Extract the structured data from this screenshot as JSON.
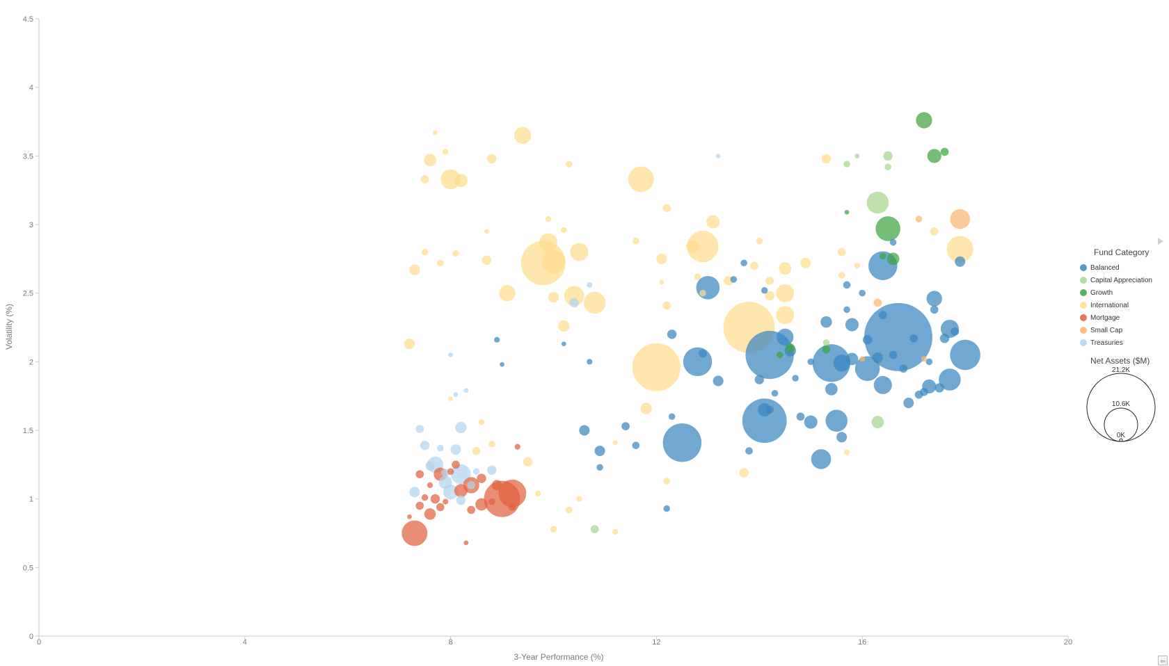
{
  "chart_data": {
    "type": "scatter",
    "xlabel": "3-Year Performance (%)",
    "ylabel": "Volatility (%)",
    "xlim": [
      0,
      20
    ],
    "ylim": [
      0,
      4.5
    ],
    "x_ticks": [
      "0",
      "4",
      "8",
      "12",
      "16",
      "20"
    ],
    "y_ticks": [
      "0",
      "0.5",
      "1",
      "1.5",
      "2",
      "2.5",
      "3",
      "3.5",
      "4",
      "4.5"
    ],
    "grid": false,
    "legend_position": "right",
    "size_variable": "Net Assets ($M)",
    "size_max": 21200,
    "series": [
      {
        "name": "Balanced",
        "color": "#3a87c0",
        "points": [
          [
            16.7,
            2.18,
            21200
          ],
          [
            14.2,
            2.05,
            10600
          ],
          [
            14.1,
            1.57,
            9000
          ],
          [
            15.4,
            1.99,
            6500
          ],
          [
            12.5,
            1.41,
            6800
          ],
          [
            13.0,
            2.54,
            2500
          ],
          [
            12.8,
            2.0,
            3800
          ],
          [
            18.0,
            2.05,
            4200
          ],
          [
            17.7,
            1.87,
            2200
          ],
          [
            16.4,
            2.7,
            3800
          ],
          [
            15.5,
            1.57,
            2200
          ],
          [
            15.2,
            1.29,
            1800
          ],
          [
            15.0,
            1.56,
            800
          ],
          [
            16.1,
            1.95,
            2800
          ],
          [
            16.4,
            1.83,
            1500
          ],
          [
            17.4,
            2.46,
            1100
          ],
          [
            14.5,
            2.18,
            1300
          ],
          [
            15.8,
            2.27,
            800
          ],
          [
            17.7,
            2.24,
            1500
          ],
          [
            17.3,
            1.82,
            900
          ],
          [
            10.6,
            1.5,
            500
          ],
          [
            10.9,
            1.35,
            500
          ],
          [
            13.2,
            1.86,
            500
          ],
          [
            15.6,
            1.45,
            500
          ],
          [
            12.3,
            2.2,
            400
          ],
          [
            14.1,
            1.65,
            800
          ],
          [
            15.6,
            1.99,
            1300
          ],
          [
            14.8,
            1.6,
            300
          ],
          [
            17.9,
            2.73,
            500
          ],
          [
            16.6,
            2.87,
            200
          ],
          [
            14.0,
            1.87,
            400
          ],
          [
            12.2,
            0.93,
            200
          ],
          [
            11.4,
            1.53,
            300
          ],
          [
            11.6,
            1.39,
            250
          ],
          [
            13.8,
            1.35,
            250
          ],
          [
            17.4,
            2.38,
            300
          ],
          [
            16.1,
            2.16,
            400
          ],
          [
            16.9,
            1.7,
            500
          ],
          [
            15.4,
            1.8,
            700
          ],
          [
            15.8,
            2.02,
            700
          ],
          [
            17.5,
            1.81,
            400
          ],
          [
            17.1,
            1.76,
            300
          ],
          [
            16.0,
            2.5,
            200
          ],
          [
            15.7,
            2.56,
            250
          ],
          [
            17.2,
            1.78,
            300
          ],
          [
            12.9,
            2.06,
            300
          ],
          [
            14.2,
            1.65,
            300
          ],
          [
            8.9,
            2.16,
            150
          ],
          [
            9.0,
            1.98,
            100
          ],
          [
            10.7,
            2.0,
            150
          ],
          [
            10.2,
            2.13,
            100
          ],
          [
            13.7,
            2.72,
            200
          ],
          [
            14.6,
            2.08,
            600
          ],
          [
            15.3,
            2.29,
            600
          ],
          [
            16.8,
            1.95,
            300
          ],
          [
            17.8,
            2.22,
            300
          ],
          [
            16.4,
            2.34,
            300
          ],
          [
            14.3,
            1.77,
            200
          ],
          [
            10.9,
            1.23,
            200
          ],
          [
            17.3,
            2.0,
            200
          ],
          [
            16.6,
            2.05,
            300
          ],
          [
            16.3,
            2.03,
            500
          ],
          [
            17.6,
            2.17,
            400
          ],
          [
            17.0,
            2.17,
            300
          ],
          [
            12.3,
            1.6,
            200
          ],
          [
            13.5,
            2.6,
            200
          ],
          [
            15.0,
            2.0,
            200
          ],
          [
            14.7,
            1.88,
            200
          ],
          [
            15.7,
            2.38,
            200
          ],
          [
            14.1,
            2.52,
            200
          ]
        ]
      },
      {
        "name": "Capital Appreciation",
        "color": "#a6d78e",
        "points": [
          [
            16.3,
            3.16,
            2200
          ],
          [
            16.3,
            1.56,
            700
          ],
          [
            16.5,
            3.5,
            400
          ],
          [
            15.7,
            3.44,
            200
          ],
          [
            16.5,
            3.42,
            200
          ],
          [
            10.8,
            0.78,
            300
          ],
          [
            15.9,
            3.5,
            100
          ],
          [
            15.3,
            2.14,
            200
          ]
        ]
      },
      {
        "name": "Growth",
        "color": "#3ea33e",
        "points": [
          [
            17.2,
            3.76,
            1200
          ],
          [
            16.5,
            2.97,
            2800
          ],
          [
            17.4,
            3.5,
            900
          ],
          [
            16.6,
            2.75,
            700
          ],
          [
            17.6,
            3.53,
            300
          ],
          [
            14.6,
            2.1,
            400
          ],
          [
            15.3,
            2.09,
            300
          ],
          [
            16.4,
            2.77,
            200
          ],
          [
            15.7,
            3.09,
            100
          ],
          [
            14.4,
            2.05,
            200
          ]
        ]
      },
      {
        "name": "International",
        "color": "#fddc8c",
        "points": [
          [
            13.8,
            2.25,
            12000
          ],
          [
            12.0,
            1.96,
            10500
          ],
          [
            9.8,
            2.72,
            9000
          ],
          [
            12.9,
            2.84,
            4500
          ],
          [
            10.0,
            2.73,
            2500
          ],
          [
            8.0,
            3.33,
            1800
          ],
          [
            11.7,
            3.33,
            3000
          ],
          [
            9.9,
            2.87,
            1500
          ],
          [
            10.4,
            2.48,
            1800
          ],
          [
            10.8,
            2.43,
            2200
          ],
          [
            14.5,
            2.5,
            1500
          ],
          [
            17.9,
            2.82,
            3200
          ],
          [
            8.2,
            3.32,
            800
          ],
          [
            9.4,
            3.65,
            1300
          ],
          [
            13.1,
            3.02,
            800
          ],
          [
            14.5,
            2.34,
            1500
          ],
          [
            12.7,
            2.84,
            700
          ],
          [
            14.5,
            2.68,
            700
          ],
          [
            10.5,
            2.8,
            1500
          ],
          [
            7.2,
            2.13,
            500
          ],
          [
            7.3,
            2.67,
            500
          ],
          [
            7.6,
            3.47,
            700
          ],
          [
            9.1,
            2.5,
            1200
          ],
          [
            11.8,
            1.66,
            600
          ],
          [
            13.7,
            1.19,
            400
          ],
          [
            10.0,
            2.47,
            500
          ],
          [
            10.2,
            2.26,
            600
          ],
          [
            12.1,
            2.75,
            500
          ],
          [
            14.9,
            2.72,
            500
          ],
          [
            15.3,
            3.48,
            400
          ],
          [
            8.8,
            3.48,
            400
          ],
          [
            9.5,
            1.27,
            400
          ],
          [
            8.7,
            2.74,
            400
          ],
          [
            8.5,
            1.35,
            300
          ],
          [
            12.2,
            3.12,
            300
          ],
          [
            12.2,
            2.41,
            300
          ],
          [
            13.4,
            2.59,
            400
          ],
          [
            14.2,
            2.48,
            400
          ],
          [
            15.6,
            2.8,
            300
          ],
          [
            17.4,
            2.95,
            300
          ],
          [
            11.6,
            2.88,
            200
          ],
          [
            10.3,
            3.44,
            200
          ],
          [
            7.5,
            2.8,
            200
          ],
          [
            7.8,
            2.72,
            200
          ],
          [
            8.1,
            2.79,
            200
          ],
          [
            13.9,
            2.7,
            300
          ],
          [
            14.2,
            2.59,
            300
          ],
          [
            12.2,
            1.13,
            200
          ],
          [
            12.8,
            2.62,
            200
          ],
          [
            12.9,
            2.5,
            200
          ],
          [
            10.5,
            1.0,
            150
          ],
          [
            10.3,
            0.92,
            200
          ],
          [
            10.0,
            0.78,
            200
          ],
          [
            11.2,
            0.76,
            150
          ],
          [
            9.7,
            1.04,
            150
          ],
          [
            8.8,
            1.4,
            200
          ],
          [
            8.6,
            1.56,
            150
          ],
          [
            7.5,
            3.33,
            300
          ],
          [
            7.9,
            3.53,
            150
          ],
          [
            7.7,
            3.67,
            100
          ],
          [
            14.0,
            2.88,
            200
          ],
          [
            15.6,
            2.63,
            200
          ],
          [
            15.9,
            2.7,
            150
          ],
          [
            15.7,
            1.34,
            150
          ],
          [
            11.2,
            1.41,
            100
          ],
          [
            12.1,
            2.58,
            100
          ],
          [
            9.9,
            3.04,
            150
          ],
          [
            10.2,
            2.96,
            150
          ],
          [
            8.7,
            2.95,
            100
          ],
          [
            8.0,
            1.73,
            100
          ]
        ]
      },
      {
        "name": "Mortgage",
        "color": "#e0633e",
        "points": [
          [
            9.0,
            1.0,
            6000
          ],
          [
            9.2,
            1.04,
            3500
          ],
          [
            7.3,
            0.75,
            3000
          ],
          [
            8.4,
            1.1,
            1200
          ],
          [
            7.8,
            1.18,
            800
          ],
          [
            8.2,
            1.06,
            800
          ],
          [
            7.6,
            0.89,
            600
          ],
          [
            8.6,
            0.96,
            700
          ],
          [
            8.9,
            1.1,
            500
          ],
          [
            8.6,
            1.15,
            400
          ],
          [
            7.7,
            1.0,
            400
          ],
          [
            7.4,
            1.18,
            300
          ],
          [
            7.4,
            0.95,
            300
          ],
          [
            8.4,
            0.92,
            300
          ],
          [
            7.8,
            0.94,
            300
          ],
          [
            8.1,
            1.25,
            300
          ],
          [
            9.2,
            0.94,
            250
          ],
          [
            9.3,
            1.38,
            150
          ],
          [
            8.8,
            0.98,
            200
          ],
          [
            7.5,
            1.01,
            200
          ],
          [
            8.3,
            0.68,
            100
          ],
          [
            7.2,
            0.87,
            100
          ],
          [
            7.6,
            1.1,
            150
          ],
          [
            8.0,
            1.2,
            200
          ],
          [
            7.9,
            0.98,
            150
          ]
        ]
      },
      {
        "name": "Small Cap",
        "color": "#fbb56e",
        "points": [
          [
            17.9,
            3.04,
            1800
          ],
          [
            16.3,
            2.43,
            300
          ],
          [
            17.1,
            3.04,
            200
          ],
          [
            16.0,
            2.02,
            150
          ],
          [
            17.2,
            2.02,
            150
          ]
        ]
      },
      {
        "name": "Treasuries",
        "color": "#b3d4ee",
        "points": [
          [
            8.2,
            1.18,
            1800
          ],
          [
            7.7,
            1.25,
            1200
          ],
          [
            8.0,
            1.05,
            1000
          ],
          [
            8.2,
            1.52,
            600
          ],
          [
            7.9,
            1.12,
            800
          ],
          [
            7.3,
            1.05,
            500
          ],
          [
            8.1,
            1.36,
            500
          ],
          [
            7.5,
            1.39,
            400
          ],
          [
            8.8,
            1.21,
            400
          ],
          [
            10.4,
            2.43,
            400
          ],
          [
            7.4,
            1.51,
            300
          ],
          [
            8.2,
            0.99,
            400
          ],
          [
            7.6,
            1.24,
            400
          ],
          [
            7.9,
            1.19,
            300
          ],
          [
            8.4,
            1.1,
            300
          ],
          [
            10.7,
            2.56,
            150
          ],
          [
            13.2,
            3.5,
            100
          ],
          [
            8.1,
            1.76,
            100
          ],
          [
            8.3,
            1.79,
            100
          ],
          [
            8.0,
            2.05,
            100
          ],
          [
            8.5,
            1.2,
            200
          ],
          [
            7.8,
            1.37,
            200
          ]
        ]
      }
    ]
  },
  "legend": {
    "title": "Fund Category",
    "items": [
      {
        "label": "Balanced",
        "color": "#3a87c0"
      },
      {
        "label": "Capital Appreciation",
        "color": "#a6d78e"
      },
      {
        "label": "Growth",
        "color": "#3ea33e"
      },
      {
        "label": "International",
        "color": "#fddc8c"
      },
      {
        "label": "Mortgage",
        "color": "#e0633e"
      },
      {
        "label": "Small Cap",
        "color": "#fbb56e"
      },
      {
        "label": "Treasuries",
        "color": "#b3d4ee"
      }
    ],
    "size_title": "Net Assets ($M)",
    "size_labels": [
      "21.2K",
      "10.6K",
      "0K"
    ]
  }
}
